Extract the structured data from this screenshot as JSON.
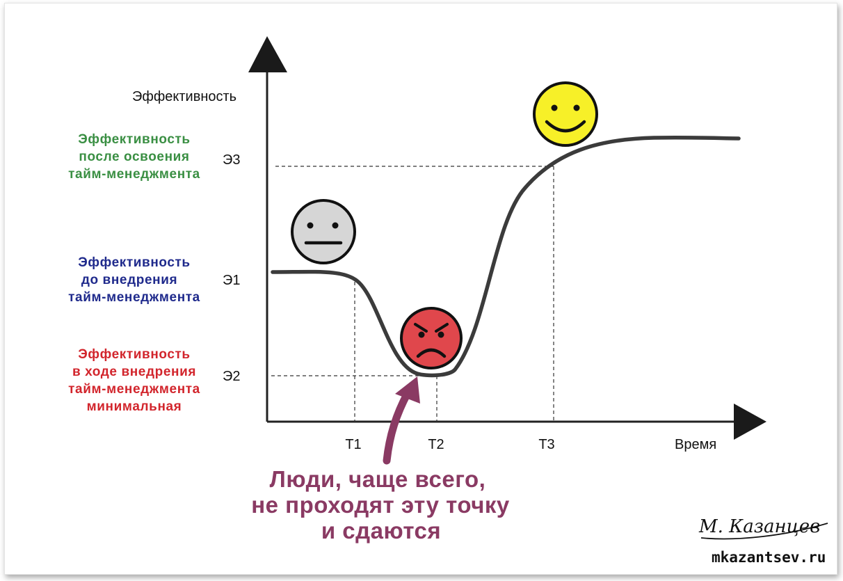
{
  "axes": {
    "y_label": "Эффективность",
    "x_label": "Время"
  },
  "levels": {
    "e1": "Э1",
    "e2": "Э2",
    "e3": "Э3"
  },
  "times": {
    "t1": "Т1",
    "t2": "Т2",
    "t3": "Т3"
  },
  "descriptions": {
    "after": {
      "lines": [
        "Эффективность",
        "после освоения",
        "тайм-менеджмента"
      ],
      "color": "#3a8f43"
    },
    "before": {
      "lines": [
        "Эффективность",
        "до внедрения",
        "тайм-менеджмента"
      ],
      "color": "#1f2a8c"
    },
    "during": {
      "lines": [
        "Эффективность",
        "в ходе внедрения",
        "тайм-менеджмента",
        "минимальная"
      ],
      "color": "#d2252c"
    }
  },
  "annotation": {
    "lines": [
      "Люди, чаще всего,",
      "не проходят эту точку",
      "и  сдаются"
    ],
    "color": "#8a3a63"
  },
  "faces": {
    "neutral": {
      "icon": "neutral-face-icon",
      "color": "#d6d6d6"
    },
    "angry": {
      "icon": "angry-face-icon",
      "color": "#e0474c"
    },
    "happy": {
      "icon": "happy-face-icon",
      "color": "#f7f028"
    }
  },
  "signature": {
    "text": "М. Казанцев",
    "site": "mkazantsev.ru"
  }
}
